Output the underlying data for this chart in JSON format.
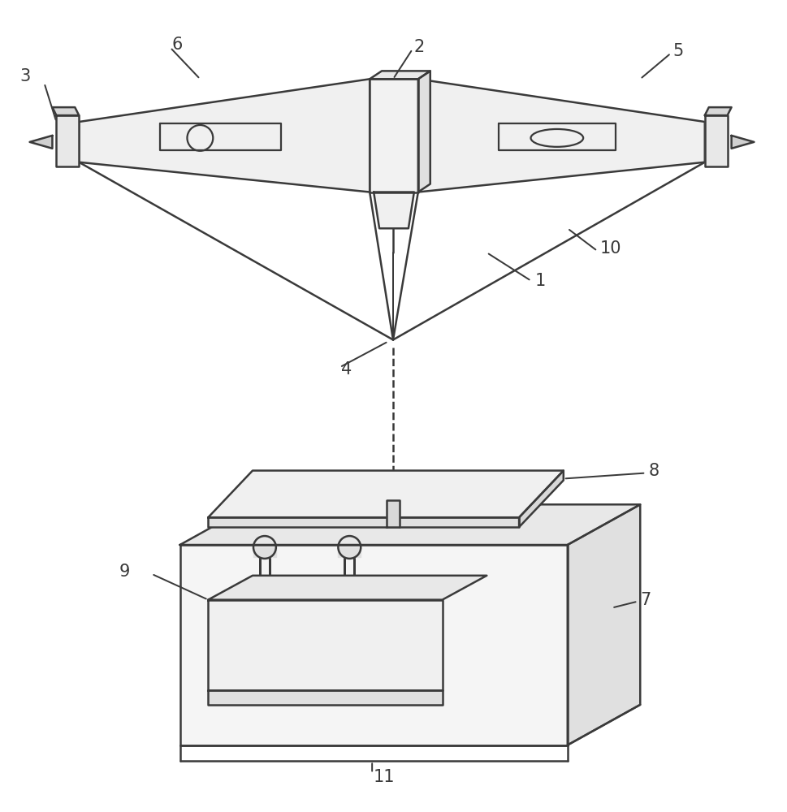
{
  "bg_color": "#ffffff",
  "line_color": "#3a3a3a",
  "line_width": 1.8,
  "label_fontsize": 15
}
